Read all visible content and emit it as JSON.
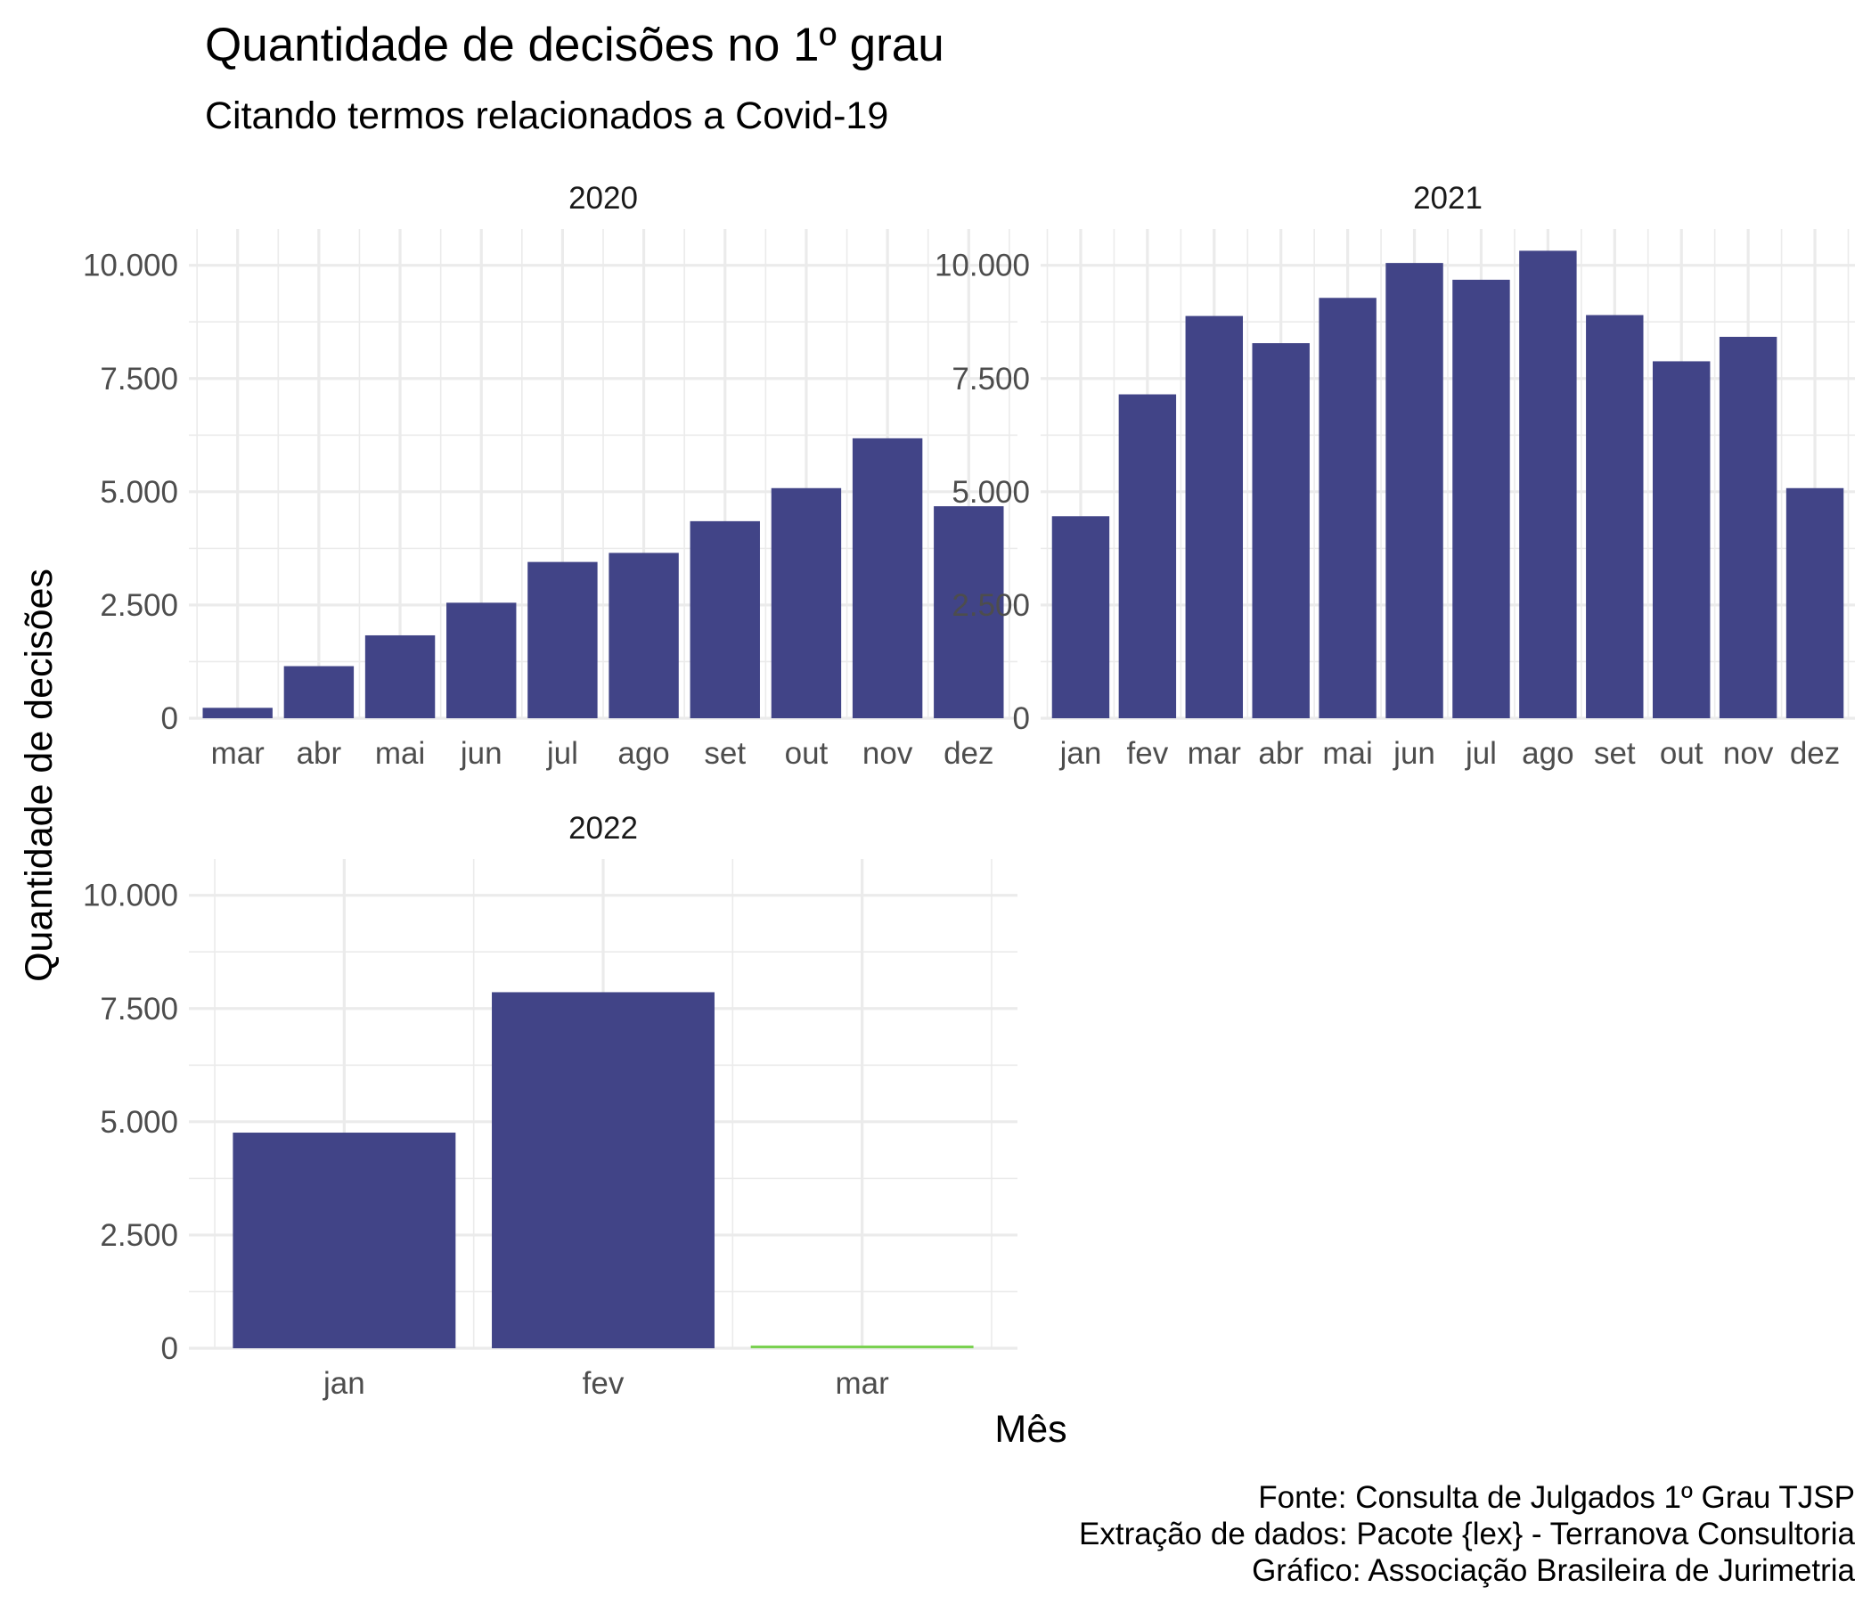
{
  "chart_data": {
    "type": "bar",
    "title": "Quantidade de decisões no 1º grau",
    "subtitle": "Citando termos relacionados a Covid-19",
    "xlabel": "Mês",
    "ylabel": "Quantidade de decisões",
    "ylim": [
      0,
      10800
    ],
    "yticks": [
      0,
      2500,
      5000,
      7500,
      10000
    ],
    "ytick_labels": [
      "0",
      "2.500",
      "5.000",
      "7.500",
      "10.000"
    ],
    "grid": true,
    "legend": "none",
    "colors": {
      "bar": "#414487",
      "highlight": "#7AD151"
    },
    "caption": [
      "Fonte: Consulta de Julgados 1º Grau TJSP",
      "Extração de dados: Pacote {lex} - Terranova Consultoria",
      "Gráfico: Associação Brasileira de Jurimetria"
    ],
    "facets": [
      {
        "label": "2020",
        "categories": [
          "mar",
          "abr",
          "mai",
          "jun",
          "jul",
          "ago",
          "set",
          "out",
          "nov",
          "dez"
        ],
        "values": [
          230,
          1150,
          1830,
          2550,
          3450,
          3650,
          4350,
          5080,
          6180,
          4680
        ],
        "highlight": []
      },
      {
        "label": "2021",
        "categories": [
          "jan",
          "fev",
          "mar",
          "abr",
          "mai",
          "jun",
          "jul",
          "ago",
          "set",
          "out",
          "nov",
          "dez"
        ],
        "values": [
          4460,
          7150,
          8880,
          8280,
          9280,
          10050,
          9680,
          10320,
          8900,
          7880,
          8420,
          5080
        ],
        "highlight": []
      },
      {
        "label": "2022",
        "categories": [
          "jan",
          "fev",
          "mar"
        ],
        "values": [
          4760,
          7860,
          60
        ],
        "highlight": [
          "mar"
        ]
      }
    ]
  }
}
